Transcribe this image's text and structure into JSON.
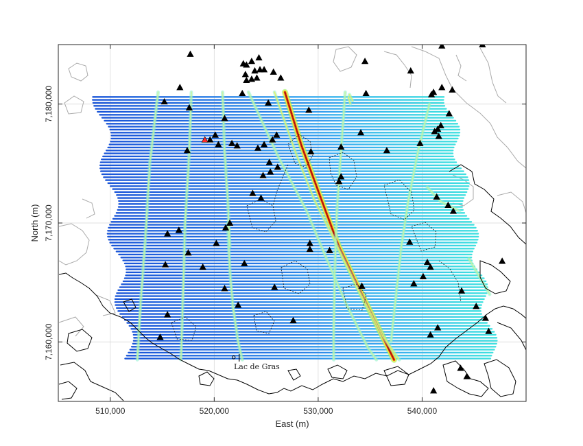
{
  "chart_data": {
    "type": "map",
    "xlabel": "East (m)",
    "ylabel": "North (m)",
    "xlim": [
      505000,
      550000
    ],
    "ylim": [
      7155000,
      7185000
    ],
    "x_ticks": [
      {
        "value": 510000,
        "label": "510,000"
      },
      {
        "value": 520000,
        "label": "520,000"
      },
      {
        "value": 530000,
        "label": "530,000"
      },
      {
        "value": 540000,
        "label": "540,000"
      }
    ],
    "y_ticks": [
      {
        "value": 7160000,
        "label": "7,160,000"
      },
      {
        "value": 7170000,
        "label": "7,170,000"
      },
      {
        "value": 7180000,
        "label": "7,180,000"
      }
    ],
    "grid": true,
    "annotation": {
      "label": "Lac de Gras",
      "x": 522400,
      "y": 7158700
    },
    "colors": {
      "line_low": "#1a55d8",
      "line_mid": "#3aa9f0",
      "line_high": "#3fe0e0",
      "anomaly_yellow": "#f2ee3a",
      "anomaly_red": "#b0100a",
      "contour_lake": "#000000",
      "contour_topo": "#aaaaaa",
      "marker": "#000000",
      "marker_highlight": "#ff2a2a"
    },
    "flight_lines": {
      "north_start": 7180600,
      "south_end": 7158500,
      "spacing": 250
    },
    "anomalies": [
      {
        "name": "main-dyke",
        "intensity": 1.0,
        "points": [
          [
            526800,
            7181000
          ],
          [
            528400,
            7176500
          ],
          [
            530300,
            7172000
          ],
          [
            532000,
            7168000
          ],
          [
            534200,
            7164000
          ],
          [
            535900,
            7161000
          ],
          [
            537300,
            7158500
          ]
        ]
      },
      {
        "name": "dyke-2",
        "intensity": 0.55,
        "points": [
          [
            525800,
            7181000
          ],
          [
            527800,
            7176000
          ],
          [
            529600,
            7172000
          ],
          [
            531600,
            7168500
          ],
          [
            533800,
            7164500
          ],
          [
            536200,
            7160500
          ],
          [
            537800,
            7158500
          ]
        ]
      },
      {
        "name": "dyke-3",
        "intensity": 0.5,
        "points": [
          [
            523300,
            7181000
          ],
          [
            526200,
            7175500
          ],
          [
            528900,
            7171000
          ],
          [
            530800,
            7167000
          ],
          [
            532800,
            7163000
          ],
          [
            534800,
            7159500
          ],
          [
            535600,
            7158500
          ]
        ]
      },
      {
        "name": "dyke-4",
        "intensity": 0.5,
        "points": [
          [
            521300,
            7170000
          ],
          [
            521500,
            7166000
          ],
          [
            521800,
            7163000
          ],
          [
            522300,
            7160000
          ],
          [
            522700,
            7158500
          ]
        ]
      },
      {
        "name": "dyke-5",
        "intensity": 0.45,
        "points": [
          [
            520800,
            7181000
          ],
          [
            521000,
            7176000
          ],
          [
            521300,
            7172000
          ],
          [
            521500,
            7168000
          ]
        ]
      },
      {
        "name": "dyke-6",
        "intensity": 0.4,
        "points": [
          [
            517800,
            7181000
          ],
          [
            517600,
            7176000
          ],
          [
            517200,
            7170000
          ],
          [
            517000,
            7164000
          ],
          [
            516800,
            7158500
          ]
        ]
      },
      {
        "name": "dyke-7",
        "intensity": 0.35,
        "points": [
          [
            514600,
            7181000
          ],
          [
            513800,
            7175000
          ],
          [
            513400,
            7169000
          ],
          [
            512900,
            7163000
          ],
          [
            512600,
            7158500
          ]
        ]
      },
      {
        "name": "dyke-8",
        "intensity": 0.45,
        "points": [
          [
            540700,
            7180000
          ],
          [
            539600,
            7176000
          ],
          [
            538700,
            7172000
          ],
          [
            538000,
            7168000
          ],
          [
            537500,
            7164000
          ],
          [
            537000,
            7160000
          ]
        ]
      },
      {
        "name": "dyke-9",
        "intensity": 0.4,
        "points": [
          [
            532600,
            7181000
          ],
          [
            532200,
            7176000
          ],
          [
            531800,
            7171000
          ],
          [
            531600,
            7166000
          ],
          [
            531500,
            7161000
          ],
          [
            531500,
            7158500
          ]
        ]
      },
      {
        "name": "dyke-10",
        "intensity": 0.45,
        "points": [
          [
            540500,
            7173000
          ],
          [
            541800,
            7171800
          ],
          [
            543600,
            7171000
          ]
        ]
      },
      {
        "name": "dyke-11",
        "intensity": 0.4,
        "points": [
          [
            544500,
            7167000
          ],
          [
            545500,
            7165500
          ],
          [
            546500,
            7164000
          ]
        ]
      },
      {
        "name": "spot-1",
        "intensity": 0.6,
        "points": [
          [
            533000,
            7180800
          ],
          [
            533300,
            7180300
          ]
        ]
      },
      {
        "name": "spot-2",
        "intensity": 0.7,
        "points": [
          [
            532900,
            7180600
          ],
          [
            533100,
            7180000
          ]
        ]
      }
    ],
    "markers": [
      [
        517700,
        7184200
      ],
      [
        522800,
        7183400
      ],
      [
        523100,
        7183300
      ],
      [
        523600,
        7183600
      ],
      [
        524300,
        7183900
      ],
      [
        523900,
        7182800
      ],
      [
        524400,
        7182900
      ],
      [
        524800,
        7182900
      ],
      [
        525700,
        7182700
      ],
      [
        523000,
        7182500
      ],
      [
        523600,
        7182100
      ],
      [
        523100,
        7182000
      ],
      [
        524100,
        7182200
      ],
      [
        526400,
        7182200
      ],
      [
        534500,
        7183600
      ],
      [
        538900,
        7182800
      ],
      [
        541900,
        7184900
      ],
      [
        542900,
        7181200
      ],
      [
        545800,
        7185000
      ],
      [
        516700,
        7181400
      ],
      [
        522700,
        7180900
      ],
      [
        534600,
        7180900
      ],
      [
        540900,
        7180800
      ],
      [
        541100,
        7181000
      ],
      [
        541900,
        7181400
      ],
      [
        515200,
        7180200
      ],
      [
        525200,
        7180100
      ],
      [
        529100,
        7179500
      ],
      [
        517600,
        7179700
      ],
      [
        521000,
        7178800
      ],
      [
        542600,
        7179200
      ],
      [
        541800,
        7178200
      ],
      [
        541500,
        7177900
      ],
      [
        541200,
        7177700
      ],
      [
        541600,
        7177300
      ],
      [
        517400,
        7176100
      ],
      [
        520100,
        7177400
      ],
      [
        519600,
        7177000
      ],
      [
        520400,
        7176600
      ],
      [
        521700,
        7176700
      ],
      [
        522200,
        7176500
      ],
      [
        524200,
        7176300
      ],
      [
        524800,
        7176600
      ],
      [
        525600,
        7177000
      ],
      [
        526000,
        7177400
      ],
      [
        529300,
        7176000
      ],
      [
        532200,
        7176400
      ],
      [
        534100,
        7177600
      ],
      [
        536600,
        7176100
      ],
      [
        539800,
        7176700
      ],
      [
        525300,
        7175100
      ],
      [
        526100,
        7174700
      ],
      [
        525400,
        7174300
      ],
      [
        524700,
        7174000
      ],
      [
        532200,
        7173900
      ],
      [
        532000,
        7173500
      ],
      [
        523700,
        7172500
      ],
      [
        524500,
        7172100
      ],
      [
        541400,
        7172200
      ],
      [
        542500,
        7171500
      ],
      [
        543000,
        7171000
      ],
      [
        521500,
        7170000
      ],
      [
        521100,
        7169600
      ],
      [
        515500,
        7169100
      ],
      [
        517500,
        7167500
      ],
      [
        518900,
        7166300
      ],
      [
        529200,
        7168300
      ],
      [
        529200,
        7167800
      ],
      [
        531100,
        7167700
      ],
      [
        522900,
        7166600
      ],
      [
        521000,
        7164500
      ],
      [
        534200,
        7164700
      ],
      [
        543800,
        7164300
      ],
      [
        539200,
        7164900
      ],
      [
        540500,
        7166700
      ],
      [
        540100,
        7165500
      ],
      [
        540800,
        7166300
      ],
      [
        525800,
        7164600
      ],
      [
        522300,
        7163100
      ],
      [
        527600,
        7161800
      ],
      [
        516600,
        7169400
      ],
      [
        515300,
        7166500
      ],
      [
        515500,
        7162300
      ],
      [
        514800,
        7160400
      ],
      [
        520200,
        7168300
      ],
      [
        538800,
        7168400
      ],
      [
        547700,
        7166800
      ],
      [
        545200,
        7163000
      ],
      [
        546100,
        7162000
      ],
      [
        546400,
        7160900
      ],
      [
        540800,
        7160600
      ],
      [
        541500,
        7161200
      ],
      [
        543700,
        7157800
      ],
      [
        541100,
        7155900
      ],
      [
        544300,
        7157100
      ]
    ],
    "highlight_marker": [
      519100,
      7177000
    ]
  }
}
